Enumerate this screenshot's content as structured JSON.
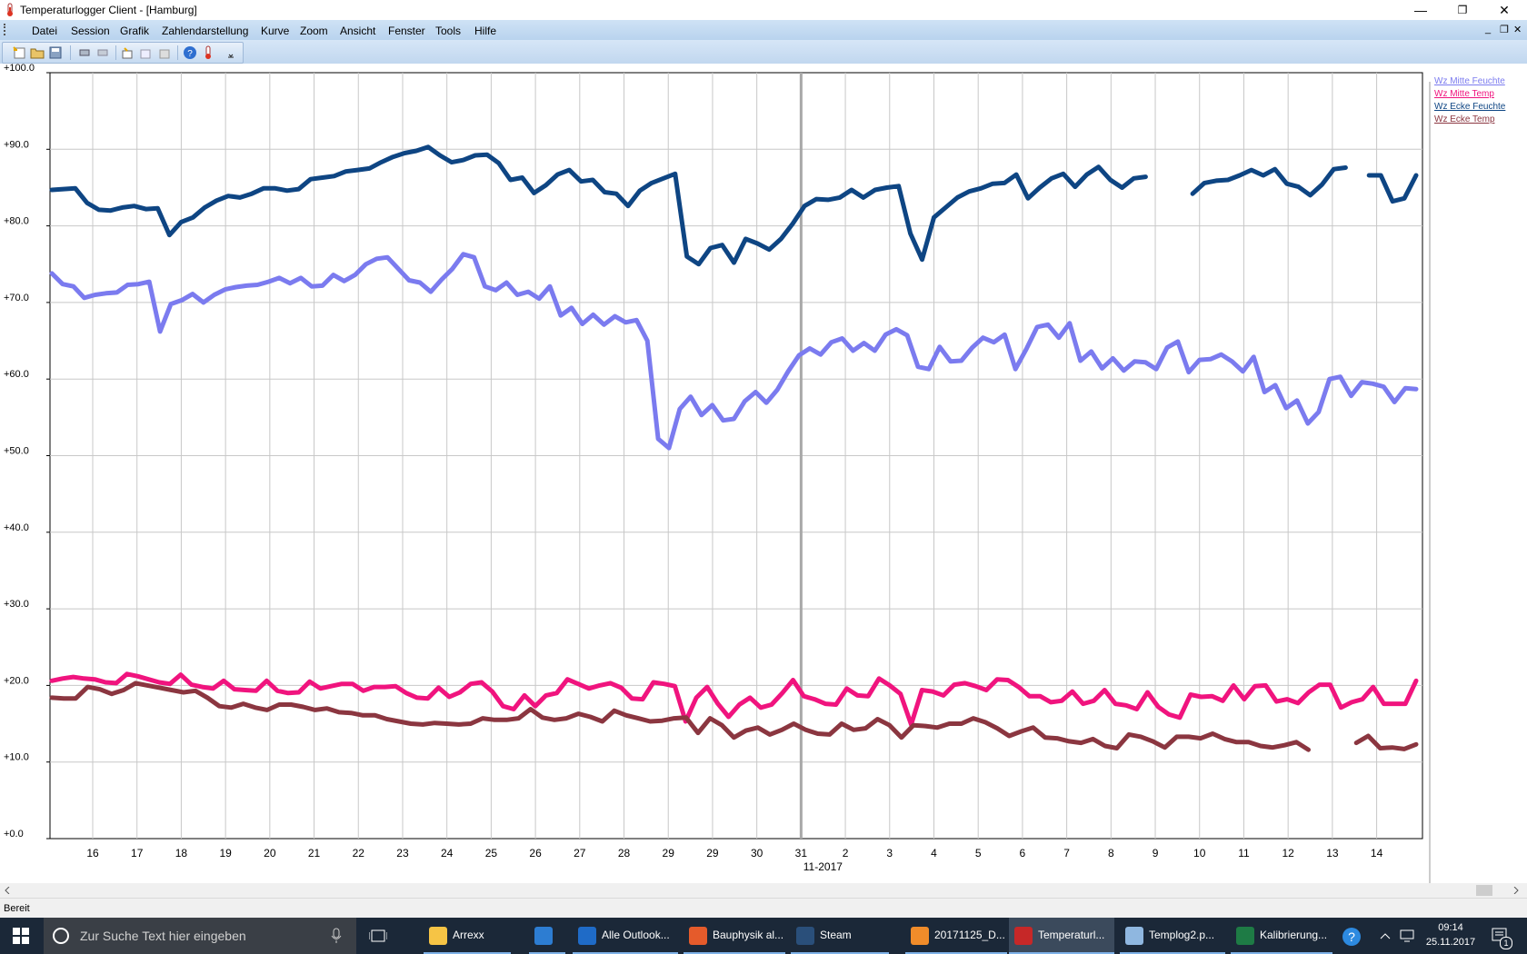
{
  "window": {
    "title": "Temperaturlogger Client - [Hamburg]",
    "minimize": "—",
    "restore": "❐",
    "close": "✕"
  },
  "menu": {
    "items": [
      "Datei",
      "Session",
      "Grafik",
      "Zahlendarstellung",
      "Kurve",
      "Zoom",
      "Ansicht",
      "Fenster",
      "Tools",
      "Hilfe"
    ],
    "mdi_minimize": "_",
    "mdi_restore": "❐",
    "mdi_close": "✕"
  },
  "toolbar": {
    "icons": [
      "new-session-icon",
      "open-icon",
      "save-icon",
      "print-icon",
      "print-preview-icon",
      "add-curve-icon",
      "copy-curve-icon",
      "delete-curve-icon",
      "help-icon",
      "thermometer-icon"
    ]
  },
  "status": {
    "text": "Bereit"
  },
  "taskbar": {
    "search_placeholder": "Zur Suche Text hier eingeben",
    "apps": [
      {
        "label": "Arrexx",
        "color": "#f6c445"
      },
      {
        "label": "",
        "color": "#2d7dd2"
      },
      {
        "label": "Alle Outlook...",
        "color": "#1f6bc7"
      },
      {
        "label": "Bauphysik al...",
        "color": "#e55b2b"
      },
      {
        "label": "Steam",
        "color": "#2a4f7a"
      },
      {
        "label": "20171125_D...",
        "color": "#f08c2a"
      },
      {
        "label": "Temperaturl...",
        "color": "#c62828"
      },
      {
        "label": "Templog2.p...",
        "color": "#8fb7e0"
      },
      {
        "label": "Kalibrierung...",
        "color": "#1e7b45"
      }
    ],
    "time": "09:14",
    "date": "25.11.2017",
    "notification_count": "1"
  },
  "chart_data": {
    "type": "line",
    "ylim": [
      0,
      100
    ],
    "yticks": [
      "+0.0",
      "+10.0",
      "+20.0",
      "+30.0",
      "+40.0",
      "+50.0",
      "+60.0",
      "+70.0",
      "+80.0",
      "+90.0",
      "+100.0"
    ],
    "xticks": [
      "16",
      "17",
      "18",
      "19",
      "20",
      "21",
      "22",
      "23",
      "24",
      "25",
      "26",
      "27",
      "28",
      "29",
      "29",
      "30",
      "31",
      "2",
      "3",
      "4",
      "5",
      "6",
      "7",
      "8",
      "9",
      "10",
      "11",
      "12",
      "13",
      "14"
    ],
    "xlabel": "11-2017",
    "grid": true,
    "legend_placement": "right",
    "series": [
      {
        "name": "Wz Mitte Feuchte",
        "color": "#7b7bef",
        "values": [
          73.8,
          72.4,
          72.1,
          70.6,
          71.0,
          71.2,
          71.3,
          72.3,
          72.4,
          72.7,
          66.2,
          69.8,
          70.3,
          71.1,
          70.0,
          71.0,
          71.7,
          72.0,
          72.2,
          72.3,
          72.7,
          73.2,
          72.5,
          73.2,
          72.1,
          72.2,
          73.6,
          72.8,
          73.6,
          75.0,
          75.7,
          75.9,
          74.4,
          72.9,
          72.6,
          71.4,
          73.0,
          74.4,
          76.3,
          75.9,
          72.1,
          71.6,
          72.6,
          71.0,
          71.4,
          70.5,
          72.1,
          68.3,
          69.3,
          67.2,
          68.4,
          67.1,
          68.2,
          67.4,
          67.7,
          65.0,
          52.2,
          51.0,
          56.1,
          57.7,
          55.3,
          56.6,
          54.6,
          54.8,
          57.1,
          58.3,
          56.9,
          58.6,
          61.0,
          63.1,
          64.0,
          63.2,
          64.8,
          65.3,
          63.7,
          64.7,
          63.7,
          65.8,
          66.5,
          65.7,
          61.6,
          61.3,
          64.2,
          62.3,
          62.4,
          64.1,
          65.4,
          64.8,
          65.8,
          61.3,
          63.9,
          66.8,
          67.1,
          65.4,
          67.3,
          62.4,
          63.6,
          61.4,
          62.7,
          61.1,
          62.3,
          62.2,
          61.3,
          64.1,
          64.9,
          60.9,
          62.5,
          62.6,
          63.2,
          62.3,
          61.0,
          62.9,
          58.3,
          59.2,
          56.2,
          57.2,
          54.2,
          55.7,
          60.0,
          60.3,
          57.8,
          59.6,
          59.4,
          59.0,
          57.0,
          58.8,
          58.7
        ]
      },
      {
        "name": "Wz Mitte Temp",
        "color": "#f0147e",
        "values": [
          20.6,
          20.9,
          21.1,
          20.9,
          20.8,
          20.4,
          20.3,
          21.5,
          21.2,
          20.8,
          20.4,
          20.2,
          21.4,
          20.1,
          19.8,
          19.6,
          20.6,
          19.5,
          19.4,
          19.3,
          20.6,
          19.3,
          19.0,
          19.1,
          20.5,
          19.6,
          19.9,
          20.2,
          20.2,
          19.3,
          19.8,
          19.8,
          19.9,
          19.0,
          18.4,
          18.3,
          19.7,
          18.5,
          19.1,
          20.2,
          20.4,
          19.2,
          17.3,
          16.9,
          18.7,
          17.3,
          18.7,
          19.0,
          20.8,
          20.2,
          19.6,
          20.0,
          20.3,
          19.7,
          18.3,
          18.2,
          20.4,
          20.2,
          19.9,
          15.3,
          18.4,
          19.8,
          17.6,
          15.9,
          17.5,
          18.4,
          17.1,
          17.5,
          19.0,
          20.7,
          18.6,
          18.2,
          17.6,
          17.5,
          19.6,
          18.7,
          18.6,
          20.9,
          20.0,
          18.9,
          14.9,
          19.4,
          19.2,
          18.7,
          20.1,
          20.3,
          19.9,
          19.4,
          20.8,
          20.7,
          19.8,
          18.6,
          18.6,
          17.8,
          18.0,
          19.2,
          17.6,
          18.0,
          19.4,
          17.6,
          17.4,
          16.9,
          19.1,
          17.2,
          16.2,
          15.8,
          18.8,
          18.5,
          18.6,
          18.0,
          20.0,
          18.2,
          19.9,
          20.0,
          17.9,
          18.2,
          17.7,
          19.1,
          20.1,
          20.1,
          17.1,
          17.8,
          18.2,
          19.8,
          17.6,
          17.6,
          17.6,
          20.6
        ]
      },
      {
        "name": "Wz Ecke Feuchte",
        "color": "#0e4583",
        "values": [
          84.7,
          84.8,
          84.9,
          83.0,
          82.1,
          82.0,
          82.4,
          82.6,
          82.2,
          82.3,
          78.8,
          80.5,
          81.1,
          82.4,
          83.3,
          83.9,
          83.7,
          84.2,
          84.9,
          84.9,
          84.6,
          84.8,
          86.1,
          86.3,
          86.5,
          87.1,
          87.3,
          87.5,
          88.3,
          89.0,
          89.5,
          89.8,
          90.3,
          89.2,
          88.3,
          88.6,
          89.2,
          89.3,
          88.2,
          86.0,
          86.3,
          84.3,
          85.3,
          86.7,
          87.3,
          85.8,
          86.0,
          84.4,
          84.2,
          82.6,
          84.6,
          85.6,
          86.2,
          86.8,
          76.0,
          75.0,
          77.1,
          77.5,
          75.2,
          78.3,
          77.7,
          76.9,
          78.3,
          80.3,
          82.6,
          83.5,
          83.4,
          83.7,
          84.7,
          83.7,
          84.7,
          85.0,
          85.2,
          79.0,
          75.6,
          81.1,
          82.4,
          83.7,
          84.5,
          84.9,
          85.5,
          85.6,
          86.7,
          83.6,
          85.0,
          86.2,
          86.8,
          85.1,
          86.7,
          87.7,
          86.0,
          85.0,
          86.2,
          86.4
        ],
        "gap_values": [
          84.2,
          85.6,
          85.9,
          86.0,
          86.6,
          87.3,
          86.6,
          87.4,
          85.5,
          85.1,
          84.0,
          85.4,
          87.4,
          87.6,
          null,
          86.6,
          86.6,
          83.2,
          83.6,
          86.6
        ]
      },
      {
        "name": "Wz Ecke Temp",
        "color": "#8b3640",
        "values": [
          18.4,
          18.3,
          18.3,
          19.8,
          19.5,
          18.9,
          19.4,
          20.3,
          20.0,
          19.7,
          19.4,
          19.1,
          19.3,
          18.4,
          17.3,
          17.1,
          17.6,
          17.1,
          16.8,
          17.5,
          17.5,
          17.2,
          16.8,
          17.0,
          16.5,
          16.4,
          16.1,
          16.1,
          15.6,
          15.3,
          15.0,
          14.9,
          15.1,
          15.0,
          14.9,
          15.0,
          15.7,
          15.5,
          15.5,
          15.7,
          16.9,
          15.8,
          15.5,
          15.7,
          16.3,
          15.9,
          15.3,
          16.7,
          16.1,
          15.7,
          15.3,
          15.4,
          15.7,
          15.8,
          13.8,
          15.7,
          14.8,
          13.2,
          14.1,
          14.5,
          13.6,
          14.2,
          15.0,
          14.2,
          13.7,
          13.6,
          15.0,
          14.2,
          14.4,
          15.6,
          14.8,
          13.2,
          14.8,
          14.7,
          14.5,
          15.0,
          15.0,
          15.7,
          15.2,
          14.4,
          13.4,
          14.0,
          14.5,
          13.2,
          13.1,
          12.7,
          12.5,
          13.0,
          12.1,
          11.8,
          13.6,
          13.3,
          12.7,
          11.9,
          13.3,
          13.3,
          13.1,
          13.7,
          13.0,
          12.6,
          12.6,
          12.1,
          11.9,
          12.2,
          12.6,
          11.6
        ],
        "gap_values": [
          12.5,
          13.4,
          11.8,
          11.9,
          11.7,
          12.3
        ]
      }
    ]
  }
}
